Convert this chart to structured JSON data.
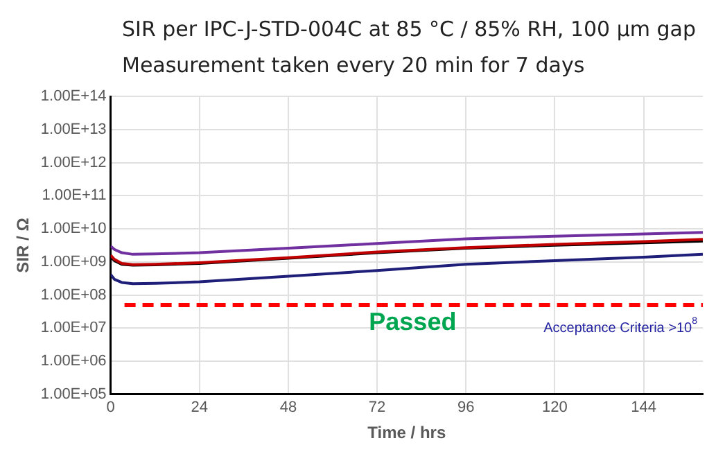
{
  "chart_data": {
    "type": "line",
    "title": "SIR per IPC-J-STD-004C at 85 °C / 85% RH, 100 µm gap",
    "subtitle": "Measurement taken every 20 min for 7 days",
    "xlabel": "Time / hrs",
    "ylabel": "SIR / Ω",
    "x": [
      0,
      1,
      3,
      6,
      12,
      24,
      48,
      72,
      96,
      120,
      144,
      160
    ],
    "series": [
      {
        "color": "#7030a0",
        "values": [
          3000000000.0,
          2400000000.0,
          1900000000.0,
          1700000000.0,
          1750000000.0,
          1900000000.0,
          2600000000.0,
          3600000000.0,
          5000000000.0,
          6000000000.0,
          7000000000.0,
          7800000000.0
        ]
      },
      {
        "color": "#c00000",
        "values": [
          1600000000.0,
          1200000000.0,
          900000000.0,
          830000000.0,
          850000000.0,
          950000000.0,
          1350000000.0,
          2000000000.0,
          2700000000.0,
          3400000000.0,
          4100000000.0,
          4800000000.0
        ]
      },
      {
        "color": "#000000",
        "values": [
          1400000000.0,
          1100000000.0,
          850000000.0,
          800000000.0,
          820000000.0,
          900000000.0,
          1300000000.0,
          1900000000.0,
          2600000000.0,
          3200000000.0,
          3800000000.0,
          4300000000.0
        ]
      },
      {
        "color": "#1f1f7a",
        "values": [
          420000000.0,
          300000000.0,
          240000000.0,
          220000000.0,
          225000000.0,
          250000000.0,
          370000000.0,
          550000000.0,
          850000000.0,
          1100000000.0,
          1400000000.0,
          1700000000.0
        ]
      }
    ],
    "xlim": [
      0,
      160
    ],
    "xticks": [
      0,
      24,
      48,
      72,
      96,
      120,
      144
    ],
    "ylim": [
      100000.0,
      100000000000000.0
    ],
    "yticks": [
      {
        "value": 100000.0,
        "label": "1.00E+05"
      },
      {
        "value": 1000000.0,
        "label": "1.00E+06"
      },
      {
        "value": 10000000.0,
        "label": "1.00E+07"
      },
      {
        "value": 100000000.0,
        "label": "1.00E+08"
      },
      {
        "value": 1000000000.0,
        "label": "1.00E+09"
      },
      {
        "value": 10000000000.0,
        "label": "1.00E+10"
      },
      {
        "value": 100000000000.0,
        "label": "1.00E+11"
      },
      {
        "value": 1000000000000.0,
        "label": "1.00E+12"
      },
      {
        "value": 10000000000000.0,
        "label": "1.00E+13"
      },
      {
        "value": 100000000000000.0,
        "label": "1.00E+14"
      }
    ],
    "log": "y",
    "grid": true,
    "legend": false,
    "marker": "none",
    "line_style": "solid",
    "ref_lines": [
      {
        "axis": "y",
        "value": 50000000.0,
        "label": "Acceptance Criteria >10$^{8}$",
        "color": "#ff0000",
        "line_style": "dashed"
      }
    ],
    "annotations": [
      "Passed"
    ]
  }
}
